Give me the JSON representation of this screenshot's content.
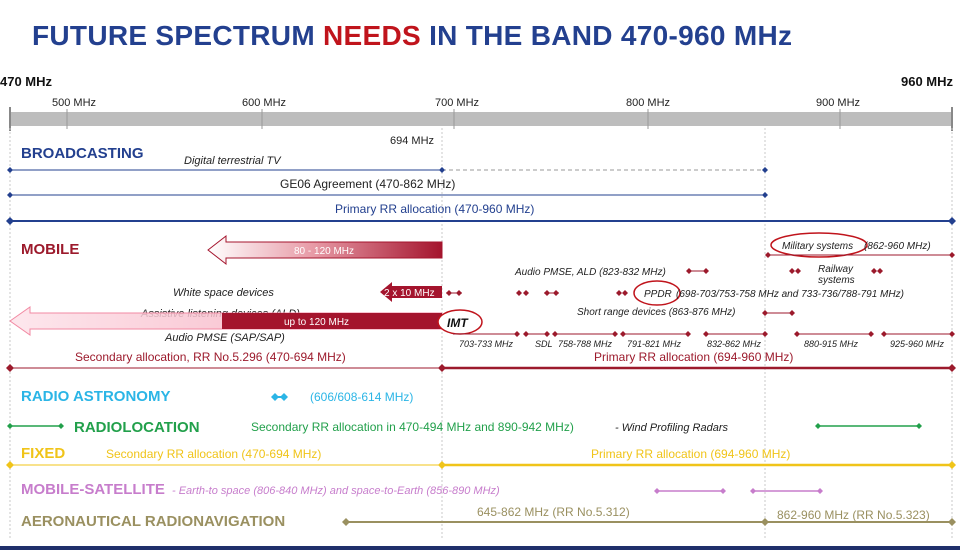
{
  "title": {
    "part1": "FUTURE SPECTRUM ",
    "part2": "NEEDS",
    "part3": " IN THE BAND 470-960 MHz"
  },
  "axis": {
    "start": "470 MHz",
    "end": "960 MHz",
    "ticks": [
      "500 MHz",
      "600 MHz",
      "700 MHz",
      "800 MHz",
      "900 MHz"
    ],
    "marker": "694 MHz"
  },
  "broadcasting": {
    "heading": "BROADCASTING",
    "dtt": "Digital terrestrial TV",
    "ge06": "GE06 Agreement (470-862 MHz)",
    "primary": "Primary RR allocation (470-960 MHz)"
  },
  "mobile": {
    "heading": "MOBILE",
    "arrow1": "80 - 120 MHz",
    "military": "Military systems",
    "military_range": "(862-960 MHz)",
    "railway": [
      "Railway",
      "systems"
    ],
    "audio_pmse_ald": "Audio PMSE, ALD (823-832 MHz)",
    "ppdr": "PPDR",
    "ppdr_range": "(698-703/753-758 MHz and 733-736/788-791 MHz)",
    "white_space": "White space devices",
    "two_x_ten": "2 x 10 MHz",
    "short_range": "Short range devices (863-876 MHz)",
    "ald": "Assistive listening devices (ALD)",
    "up_to_120": "up to 120 MHz",
    "imt": "IMT",
    "audio_pmse_sap": "Audio PMSE (SAP/SAP)",
    "sub_bands": [
      "703-733 MHz",
      "SDL",
      "758-788 MHz",
      "791-821 MHz",
      "832-862 MHz",
      "880-915 MHz",
      "925-960 MHz"
    ],
    "secondary": "Secondary allocation, RR No.5.296 (470-694 MHz)",
    "primary": "Primary RR allocation (694-960 MHz)"
  },
  "radio_astronomy": {
    "heading": "RADIO ASTRONOMY",
    "range": "(606/608-614 MHz)"
  },
  "radiolocation": {
    "heading": "RADIOLOCATION",
    "text": "Secondary RR allocation in 470-494 MHz and 890-942 MHz)",
    "note": "- Wind Profiling Radars"
  },
  "fixed": {
    "heading": "FIXED",
    "secondary": "Secondary RR allocation (470-694 MHz)",
    "primary": "Primary RR allocation (694-960 MHz)"
  },
  "mobile_satellite": {
    "heading": "MOBILE-SATELLITE",
    "text": "- Earth-to space (806-840 MHz) and space-to-Earth (856-890 MHz)"
  },
  "aeronautical": {
    "heading": "AERONAUTICAL RADIONAVIGATION",
    "range1": "645-862 MHz (RR No.5.312)",
    "range2": "862-960 MHz (RR No.5.323)"
  },
  "colors": {
    "title_blue": "#23408f",
    "title_red": "#c0141c",
    "broadcasting": "#23408f",
    "mobile": "#9c1a2c",
    "radio_astronomy": "#2bb5e6",
    "radiolocation": "#22a04b",
    "fixed": "#f0c419",
    "mobile_satellite": "#c77dcc",
    "aeronautical": "#9a9060",
    "axis_gray": "#bdbdbd"
  }
}
